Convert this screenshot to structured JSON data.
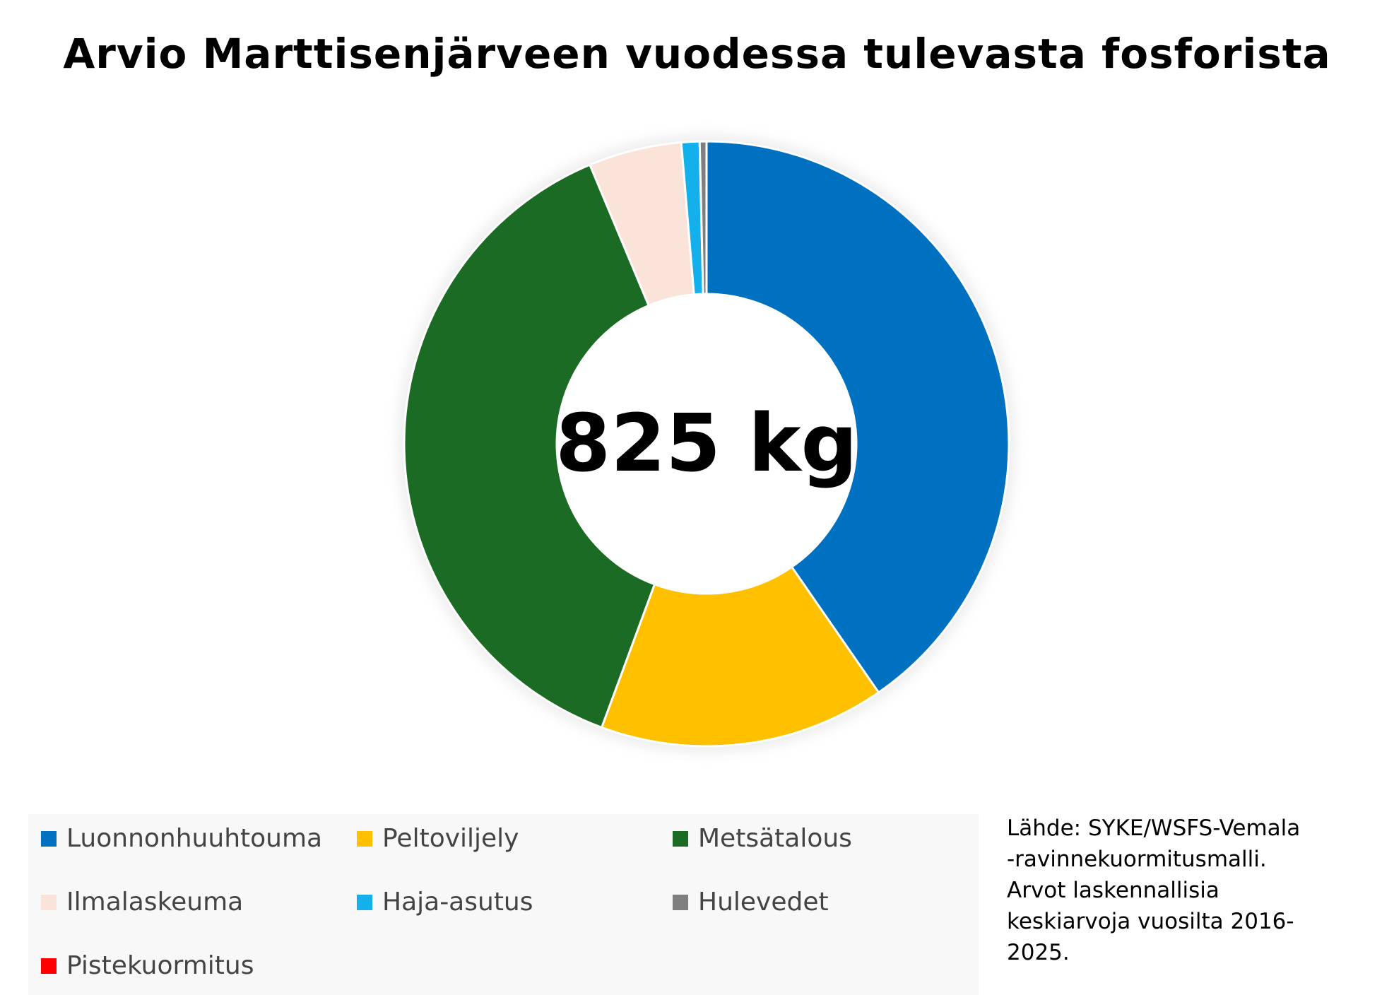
{
  "chart_data": {
    "type": "pie",
    "title": "Arvio Marttisenjärveen vuodessa tulevasta fosforista",
    "center_label": "825 kg",
    "unit": "kg",
    "total": 825,
    "categories": [
      "Luonnonhuuhtouma",
      "Peltoviljely",
      "Metsätalous",
      "Ilmalaskeuma",
      "Haja-asutus",
      "Hulevedet",
      "Pistekuormitus"
    ],
    "values": [
      333,
      126,
      314,
      41,
      8,
      3,
      0
    ],
    "colors": [
      "#0070c0",
      "#ffc000",
      "#1b6b25",
      "#fae3d8",
      "#13b0eb",
      "#7f7f7f",
      "#ff0000"
    ],
    "legend_position": "bottom-left"
  },
  "source": {
    "lines": [
      "Lähde: SYKE/WSFS-Vemala",
      "-ravinnekuormitusmalli.",
      "Arvot laskennallisia",
      "keskiarvoja vuosilta 2016-",
      "2025."
    ]
  }
}
